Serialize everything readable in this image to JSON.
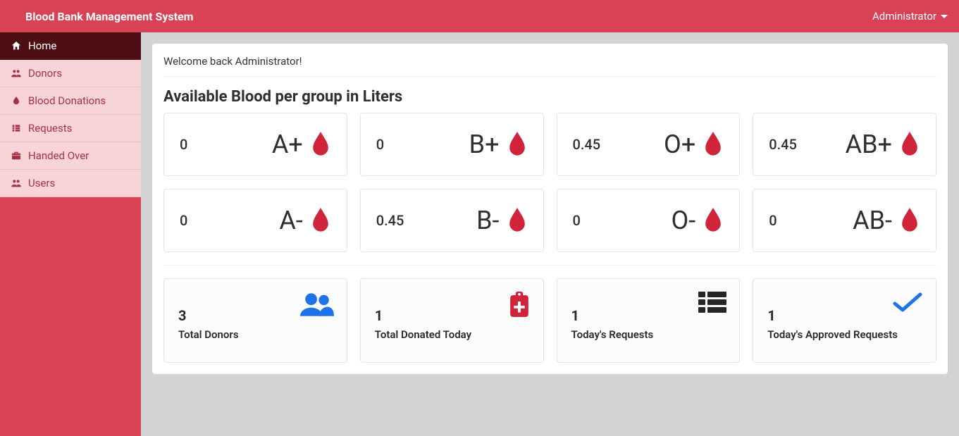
{
  "brand": "Blood Bank Management System",
  "user_menu_label": "Administrator",
  "sidebar": {
    "items": [
      {
        "label": "Home",
        "icon": "home",
        "active": true
      },
      {
        "label": "Donors",
        "icon": "users",
        "active": false
      },
      {
        "label": "Blood Donations",
        "icon": "drop",
        "active": false
      },
      {
        "label": "Requests",
        "icon": "list",
        "active": false
      },
      {
        "label": "Handed Over",
        "icon": "briefcase",
        "active": false
      },
      {
        "label": "Users",
        "icon": "users",
        "active": false
      }
    ]
  },
  "welcome_text": "Welcome back Administrator!",
  "blood_section_title": "Available Blood per group in Liters",
  "blood_groups": [
    {
      "group": "A+",
      "amount": "0"
    },
    {
      "group": "B+",
      "amount": "0"
    },
    {
      "group": "O+",
      "amount": "0.45"
    },
    {
      "group": "AB+",
      "amount": "0.45"
    },
    {
      "group": "A-",
      "amount": "0"
    },
    {
      "group": "B-",
      "amount": "0.45"
    },
    {
      "group": "O-",
      "amount": "0"
    },
    {
      "group": "AB-",
      "amount": "0"
    }
  ],
  "stats": [
    {
      "value": "3",
      "label": "Total Donors",
      "icon": "users-solid",
      "color": "#1e73e8"
    },
    {
      "value": "1",
      "label": "Total Donated Today",
      "icon": "med-clipboard",
      "color": "#d0243b"
    },
    {
      "value": "1",
      "label": "Today's Requests",
      "icon": "grid-list",
      "color": "#262626"
    },
    {
      "value": "1",
      "label": "Today's Approved Requests",
      "icon": "check",
      "color": "#1e73e8"
    }
  ],
  "colors": {
    "primary": "#d94155",
    "blood_drop": "#d0243b",
    "sidebar_active_bg": "#4d0e14",
    "sidebar_item_bg": "#f8d4d9",
    "sidebar_item_text": "#a63143",
    "panel_bg": "#ffffff",
    "body_bg": "#d3d3d3",
    "stat_blue": "#1e73e8",
    "stat_dark": "#262626"
  }
}
